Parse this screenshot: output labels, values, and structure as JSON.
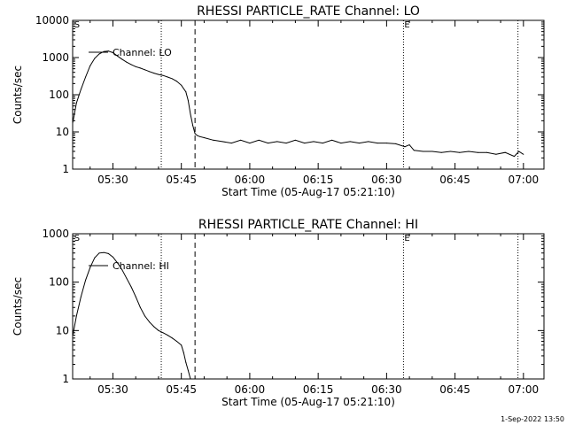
{
  "chart_data": [
    {
      "type": "line",
      "title": "RHESSI PARTICLE_RATE Channel: LO",
      "xlabel": "Start Time (05-Aug-17 05:21:10)",
      "ylabel": "Counts/sec",
      "yscale": "log",
      "xlim": [
        21.17,
        124.5
      ],
      "ylim": [
        1,
        10000
      ],
      "x_ticks": [
        30,
        45,
        60,
        75,
        90,
        105,
        120
      ],
      "x_tick_labels": [
        "05:30",
        "05:45",
        "06:00",
        "06:15",
        "06:30",
        "06:45",
        "07:00"
      ],
      "y_ticks": [
        1,
        10,
        100,
        1000,
        10000
      ],
      "y_tick_labels": [
        "1",
        "10",
        "100",
        "1000",
        "10000"
      ],
      "legend": "Channel: LO",
      "legend_position": "top-left",
      "marker_S": "S",
      "marker_E": "E",
      "marker_S_x": 21.5,
      "marker_E_x": 93.7,
      "dotted_lines_x": [
        40.6,
        93.7,
        118.8
      ],
      "dashed_lines_x": [
        48.0
      ],
      "series": [
        {
          "name": "Channel: LO",
          "x": [
            21.2,
            22,
            23,
            24,
            25,
            26,
            27,
            28,
            29,
            30,
            31,
            32,
            33,
            34,
            35,
            36,
            37,
            38,
            39,
            40,
            41,
            42,
            43,
            44,
            45,
            46,
            46.5,
            47,
            47.5,
            48,
            48.5,
            49,
            50,
            52,
            54,
            56,
            58,
            60,
            62,
            64,
            66,
            68,
            70,
            72,
            74,
            76,
            78,
            80,
            82,
            84,
            86,
            88,
            90,
            92,
            94,
            95,
            96,
            98,
            100,
            102,
            104,
            106,
            108,
            110,
            112,
            114,
            116,
            118,
            119,
            120
          ],
          "y": [
            18,
            60,
            140,
            300,
            600,
            950,
            1250,
            1450,
            1500,
            1350,
            1100,
            900,
            750,
            650,
            570,
            520,
            470,
            420,
            380,
            350,
            330,
            300,
            270,
            230,
            180,
            120,
            70,
            30,
            15,
            9,
            8,
            7.5,
            7,
            6,
            5.5,
            5,
            6,
            5,
            6,
            5,
            5.5,
            5,
            6,
            5,
            5.5,
            5,
            6,
            5,
            5.5,
            5,
            5.5,
            5,
            5,
            4.8,
            4,
            4.5,
            3.2,
            3,
            3,
            2.8,
            3,
            2.8,
            3,
            2.8,
            2.8,
            2.5,
            2.8,
            2.2,
            3,
            2.5
          ]
        }
      ]
    },
    {
      "type": "line",
      "title": "RHESSI PARTICLE_RATE Channel: HI",
      "xlabel": "Start Time (05-Aug-17 05:21:10)",
      "ylabel": "Counts/sec",
      "yscale": "log",
      "xlim": [
        21.17,
        124.5
      ],
      "ylim": [
        1,
        1000
      ],
      "x_ticks": [
        30,
        45,
        60,
        75,
        90,
        105,
        120
      ],
      "x_tick_labels": [
        "05:30",
        "05:45",
        "06:00",
        "06:15",
        "06:30",
        "06:45",
        "07:00"
      ],
      "y_ticks": [
        1,
        10,
        100,
        1000
      ],
      "y_tick_labels": [
        "1",
        "10",
        "100",
        "1000"
      ],
      "legend": "Channel: HI",
      "legend_position": "top-left",
      "marker_S": "S",
      "marker_E": "E",
      "marker_S_x": 21.5,
      "marker_E_x": 93.7,
      "dotted_lines_x": [
        40.6,
        93.7,
        118.8
      ],
      "dashed_lines_x": [
        48.0
      ],
      "series": [
        {
          "name": "Channel: HI",
          "x": [
            21.2,
            22,
            23,
            24,
            25,
            26,
            27,
            28,
            29,
            30,
            31,
            32,
            33,
            34,
            35,
            36,
            37,
            38,
            39,
            40,
            41,
            42,
            43,
            44,
            45,
            45.5,
            46,
            46.5,
            47
          ],
          "y": [
            8,
            20,
            50,
            110,
            200,
            320,
            400,
            410,
            390,
            330,
            250,
            180,
            120,
            80,
            50,
            30,
            20,
            15,
            12,
            10,
            9,
            8,
            7,
            6,
            5,
            3.5,
            2.2,
            1.5,
            1
          ]
        }
      ]
    }
  ],
  "footer": {
    "timestamp": "1-Sep-2022 13:50"
  }
}
